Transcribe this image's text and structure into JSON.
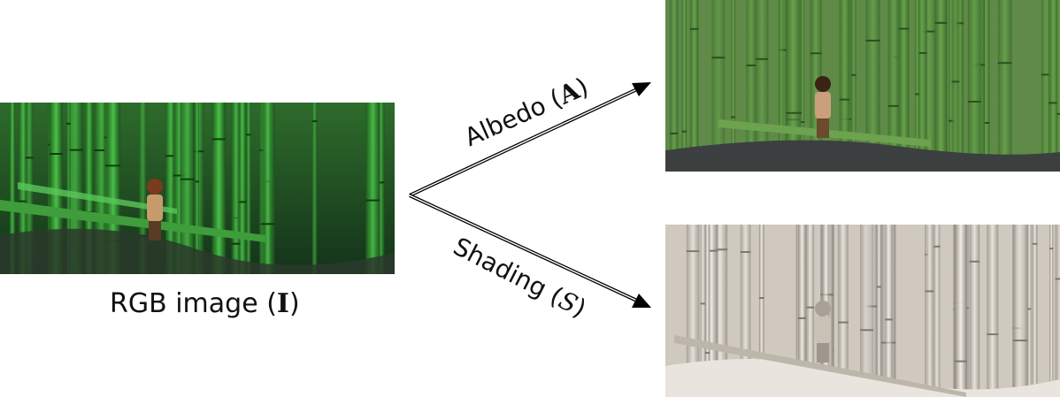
{
  "rgb": {
    "caption_prefix": "RGB image (",
    "symbol": "I",
    "caption_suffix": ")"
  },
  "albedo": {
    "label_prefix": "Albedo (",
    "symbol": "A",
    "label_suffix": ")"
  },
  "shading": {
    "label_prefix": "Shading (",
    "symbol": "S",
    "label_suffix": ")"
  },
  "colors": {
    "rgb_dark": "#1f4a1e",
    "rgb_bamboo": "#3fae3a",
    "albedo_bamboo": "#4f8a3a",
    "shading_bamboo": "#d8d2c8"
  }
}
